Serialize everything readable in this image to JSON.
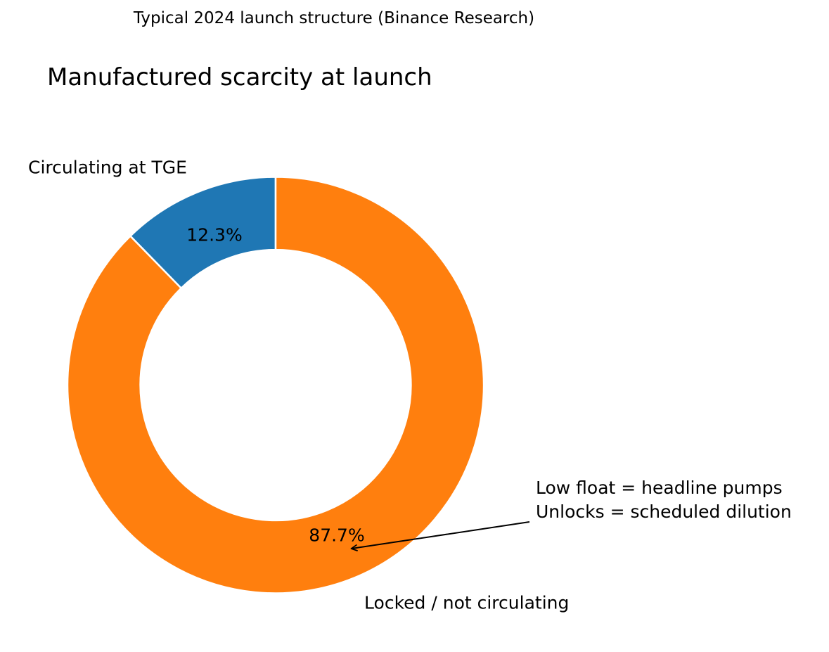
{
  "chart_data": {
    "type": "pie",
    "variant": "donut",
    "suptitle": "Typical 2024 launch structure (Binance Research)",
    "title": "Manufactured scarcity at launch",
    "categories": [
      "Circulating at TGE",
      "Locked / not circulating"
    ],
    "values": [
      12.3,
      87.7
    ],
    "value_labels": [
      "12.3%",
      "87.7%"
    ],
    "colors": [
      "#1f77b4",
      "#ff7f0e"
    ],
    "hole_ratio": 0.65,
    "start_angle_deg": 90,
    "direction": "counterclockwise",
    "legend": "none",
    "background": "#ffffff",
    "text_color": "#000000",
    "annotation": {
      "line1": "Low float = headline pumps",
      "line2": "Unlocks = scheduled dilution",
      "points_to": "87.7% slice"
    }
  }
}
